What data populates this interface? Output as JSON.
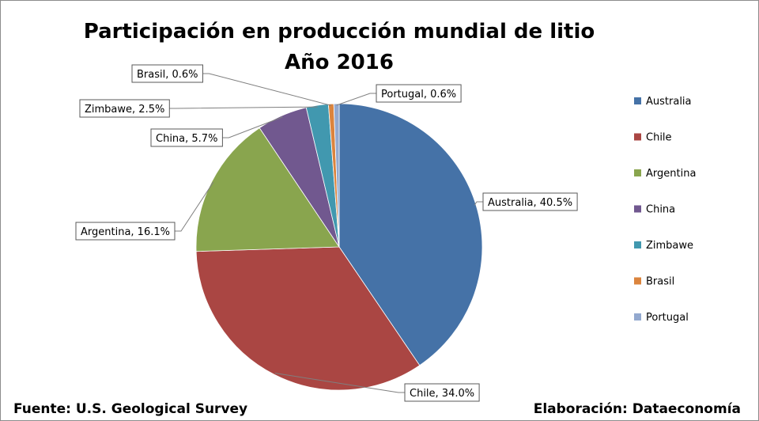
{
  "chart_data": {
    "type": "pie",
    "title": "Participación en producción mundial de litio",
    "subtitle": "Año 2016",
    "categories": [
      "Australia",
      "Chile",
      "Argentina",
      "China",
      "Zimbawe",
      "Brasil",
      "Portugal"
    ],
    "values": [
      40.5,
      34.0,
      16.1,
      5.7,
      2.5,
      0.6,
      0.6
    ],
    "value_unit": "%",
    "data_labels": [
      "Australia, 40.5%",
      "Chile, 34.0%",
      "Argentina, 16.1%",
      "China, 5.7%",
      "Zimbawe, 2.5%",
      "Brasil, 0.6%",
      "Portugal, 0.6%"
    ],
    "colors": [
      "#4572A7",
      "#AA4643",
      "#89A54E",
      "#71588F",
      "#4198AF",
      "#DB843D",
      "#93A9CF"
    ],
    "legend_position": "right",
    "start_angle_deg": 0,
    "direction": "clockwise"
  },
  "footer": {
    "source": "Fuente: U.S. Geological Survey",
    "credit": "Elaboración: Dataeconomía"
  }
}
